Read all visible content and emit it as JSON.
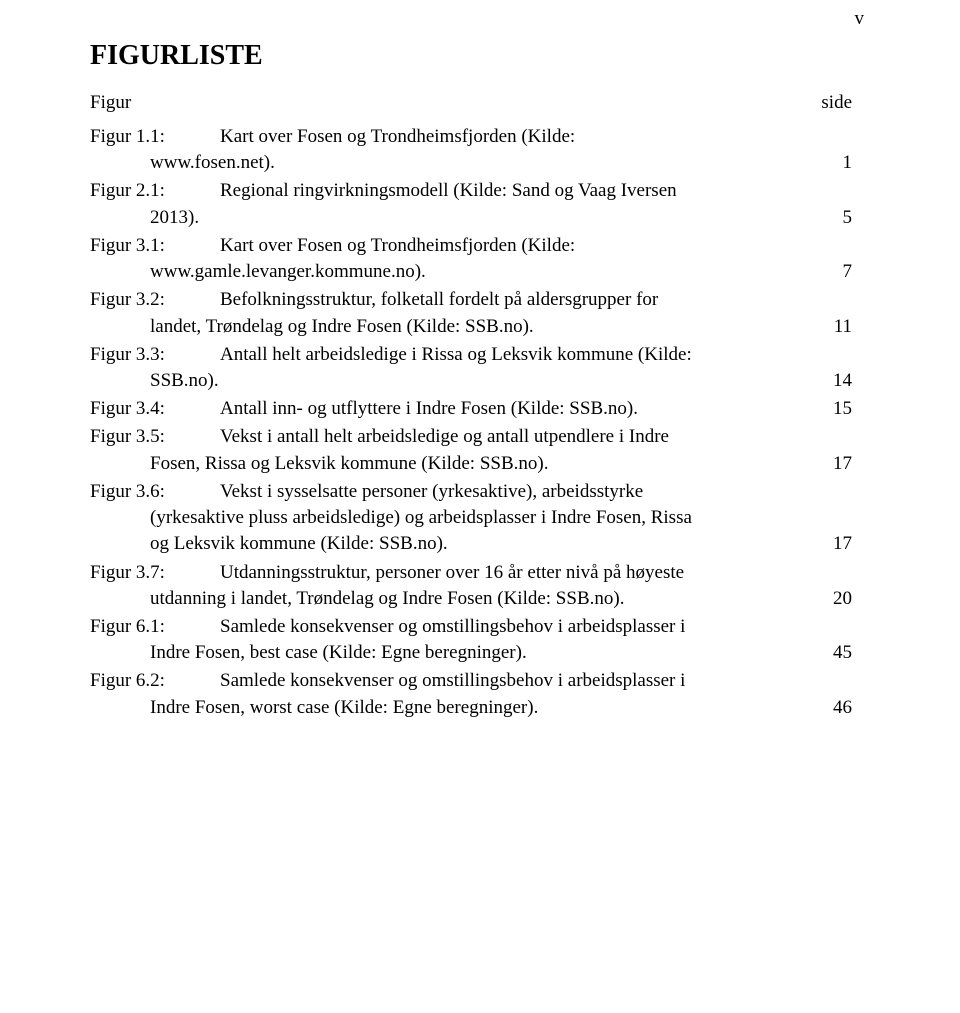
{
  "header": {
    "page_roman": "v",
    "title": "FIGURLISTE",
    "col_left": "Figur",
    "col_right": "side"
  },
  "entries": [
    {
      "label": "Figur 1.1:",
      "lines": [
        {
          "text": "Kart over Fosen og Trondheimsfjorden (Kilde:",
          "page": ""
        },
        {
          "cont": true,
          "text": "www.fosen.net).",
          "page": "1"
        }
      ]
    },
    {
      "label": "Figur 2.1:",
      "lines": [
        {
          "text": "Regional ringvirkningsmodell (Kilde: Sand og Vaag Iversen",
          "page": ""
        },
        {
          "cont": true,
          "text": "2013).",
          "page": "5"
        }
      ]
    },
    {
      "label": "Figur 3.1:",
      "lines": [
        {
          "text": "Kart over Fosen og Trondheimsfjorden (Kilde:",
          "page": ""
        },
        {
          "cont": true,
          "text": "www.gamle.levanger.kommune.no).",
          "page": "7"
        }
      ]
    },
    {
      "label": "Figur 3.2:",
      "lines": [
        {
          "text": "Befolkningsstruktur, folketall fordelt på aldersgrupper for",
          "page": ""
        },
        {
          "cont": true,
          "text": "landet, Trøndelag og Indre Fosen (Kilde: SSB.no).",
          "page": "11"
        }
      ]
    },
    {
      "label": "Figur 3.3:",
      "lines": [
        {
          "text": "Antall helt arbeidsledige i Rissa og Leksvik kommune (Kilde:",
          "page": ""
        },
        {
          "cont": true,
          "text": "SSB.no).",
          "page": "14"
        }
      ]
    },
    {
      "label": "Figur 3.4:",
      "lines": [
        {
          "text": "Antall inn- og utflyttere i Indre Fosen (Kilde: SSB.no).",
          "page": "15"
        }
      ]
    },
    {
      "label": "Figur 3.5:",
      "lines": [
        {
          "text": "Vekst i antall helt arbeidsledige og antall utpendlere i Indre",
          "page": ""
        },
        {
          "cont": true,
          "text": "Fosen, Rissa og Leksvik kommune (Kilde: SSB.no).",
          "page": "17"
        }
      ]
    },
    {
      "label": "Figur 3.6:",
      "lines": [
        {
          "text": "Vekst i sysselsatte personer (yrkesaktive), arbeidsstyrke",
          "page": ""
        },
        {
          "cont": true,
          "text": "(yrkesaktive pluss arbeidsledige) og arbeidsplasser i Indre Fosen, Rissa",
          "page": ""
        },
        {
          "cont": true,
          "text": "og Leksvik kommune (Kilde: SSB.no).",
          "page": "17"
        }
      ]
    },
    {
      "label": "Figur 3.7:",
      "lines": [
        {
          "text": "Utdanningsstruktur, personer over 16 år etter nivå på høyeste",
          "page": ""
        },
        {
          "cont": true,
          "text": "utdanning i landet, Trøndelag og Indre Fosen (Kilde: SSB.no).",
          "page": "20"
        }
      ]
    },
    {
      "label": "Figur 6.1:",
      "lines": [
        {
          "text": "Samlede konsekvenser og omstillingsbehov i arbeidsplasser i",
          "page": ""
        },
        {
          "cont": true,
          "text": "Indre Fosen, best case (Kilde: Egne beregninger).",
          "page": "45"
        }
      ]
    },
    {
      "label": "Figur 6.2:",
      "lines": [
        {
          "text": "Samlede konsekvenser og omstillingsbehov i arbeidsplasser i",
          "page": ""
        },
        {
          "cont": true,
          "text": "Indre Fosen, worst case (Kilde: Egne beregninger).",
          "page": "46"
        }
      ]
    }
  ]
}
